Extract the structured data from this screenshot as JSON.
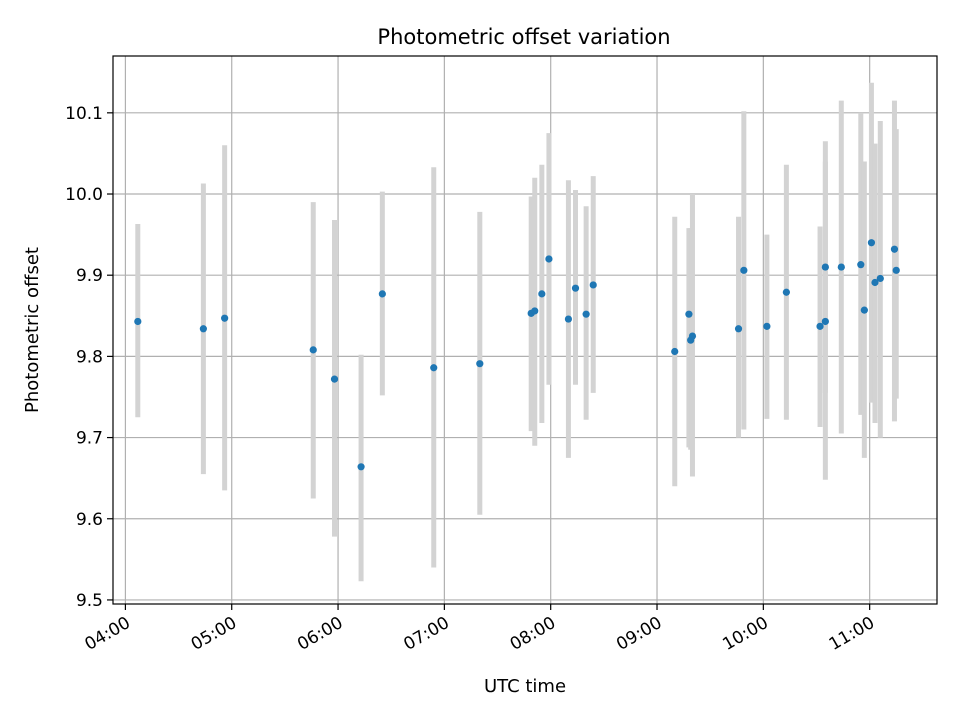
{
  "chart_data": {
    "type": "scatter",
    "title": "Photometric offset variation",
    "xlabel": "UTC time",
    "ylabel": "Photometric offset",
    "x_tick_labels": [
      "04:00",
      "05:00",
      "06:00",
      "07:00",
      "08:00",
      "09:00",
      "10:00",
      "11:00"
    ],
    "x_tick_hours": [
      4,
      5,
      6,
      7,
      8,
      9,
      10,
      11
    ],
    "y_ticks": [
      9.5,
      9.6,
      9.7,
      9.8,
      9.9,
      10.0,
      10.1
    ],
    "y_tick_labels": [
      "9.5",
      "9.6",
      "9.7",
      "9.8",
      "9.9",
      "10.0",
      "10.1"
    ],
    "xlim": [
      "03:53",
      "11:38"
    ],
    "ylim": [
      9.495,
      10.17
    ],
    "grid": true,
    "marker_color": "#1f77b4",
    "errorbar_color": "#d3d3d3",
    "series": [
      {
        "x": [
          "04:07",
          "04:44",
          "04:56",
          "05:46",
          "05:58",
          "06:13",
          "06:25",
          "06:54",
          "07:20",
          "07:49",
          "07:51",
          "07:55",
          "07:59",
          "08:10",
          "08:14",
          "08:20",
          "08:24",
          "09:10",
          "09:18",
          "09:19",
          "09:20",
          "09:46",
          "09:49",
          "10:02",
          "10:13",
          "10:32",
          "10:35",
          "10:35",
          "10:44",
          "10:55",
          "10:57",
          "11:01",
          "11:03",
          "11:06",
          "11:14",
          "11:15"
        ],
        "y": [
          9.843,
          9.834,
          9.847,
          9.808,
          9.772,
          9.664,
          9.877,
          9.786,
          9.791,
          9.853,
          9.856,
          9.877,
          9.92,
          9.846,
          9.884,
          9.852,
          9.888,
          9.806,
          9.852,
          9.82,
          9.825,
          9.834,
          9.906,
          9.837,
          9.879,
          9.837,
          9.843,
          9.91,
          9.91,
          9.913,
          9.857,
          9.94,
          9.891,
          9.896,
          9.932,
          9.906
        ],
        "yerr_low": [
          9.725,
          9.655,
          9.635,
          9.625,
          9.578,
          9.523,
          9.752,
          9.54,
          9.605,
          9.708,
          9.69,
          9.718,
          9.765,
          9.675,
          9.765,
          9.722,
          9.755,
          9.64,
          9.688,
          9.685,
          9.652,
          9.7,
          9.71,
          9.723,
          9.722,
          9.713,
          9.648,
          9.755,
          9.705,
          9.728,
          9.675,
          9.743,
          9.718,
          9.7,
          9.72,
          9.748
        ],
        "yerr_high": [
          9.963,
          10.013,
          10.06,
          9.99,
          9.968,
          9.802,
          10.003,
          10.033,
          9.978,
          9.997,
          10.02,
          10.036,
          10.075,
          10.017,
          10.005,
          9.985,
          10.022,
          9.972,
          9.958,
          9.958,
          10.0,
          9.972,
          10.102,
          9.95,
          10.036,
          9.96,
          10.04,
          10.065,
          10.115,
          10.1,
          10.04,
          10.137,
          10.062,
          10.09,
          10.115,
          10.08
        ]
      }
    ]
  }
}
